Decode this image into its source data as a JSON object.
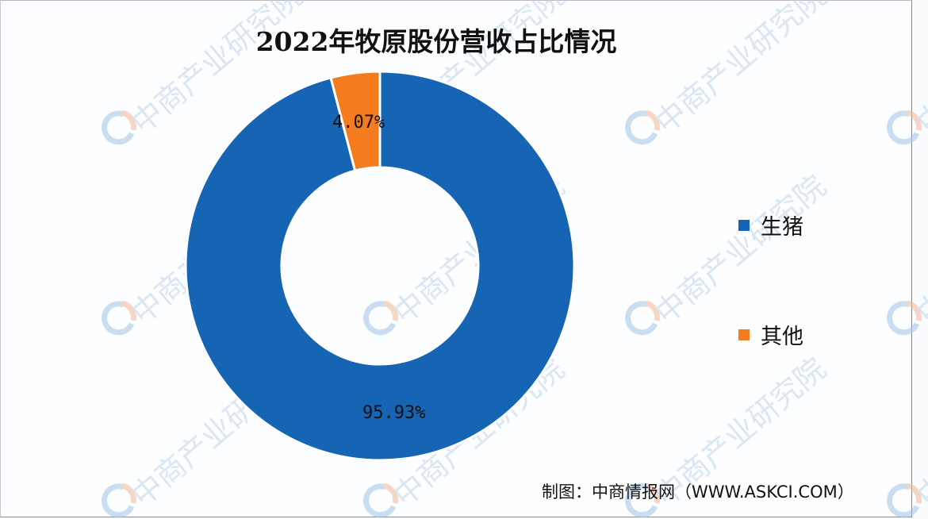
{
  "chart_data": {
    "type": "pie",
    "variant": "donut",
    "title": "2022年牧原股份营收占比情况",
    "categories": [
      "生猪",
      "其他"
    ],
    "values": [
      95.93,
      4.07
    ],
    "unit": "%",
    "data_labels": [
      "95.93%",
      "4.07%"
    ],
    "colors": [
      "#1565b4",
      "#f47c1e"
    ],
    "legend_position": "right",
    "source": "制图：中商情报网（WWW.ASKCI.COM）"
  },
  "title": "2022年牧原股份营收占比情况",
  "labels": {
    "pig": "95.93%",
    "other": "4.07%"
  },
  "legend": {
    "items": [
      {
        "label": "生猪",
        "color": "#1565b4"
      },
      {
        "label": "其他",
        "color": "#f47c1e"
      }
    ]
  },
  "source": "制图：中商情报网（WWW.ASKCI.COM）",
  "watermark": "中商产业研究院"
}
